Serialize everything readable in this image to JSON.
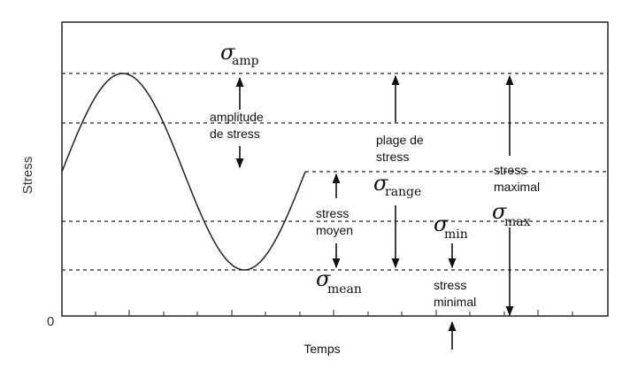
{
  "axes": {
    "y_label": "Stress",
    "x_label": "Temps",
    "origin_label": "0"
  },
  "annotations": {
    "amplitude": [
      "amplitude",
      "de stress"
    ],
    "mean": [
      "stress",
      "moyen"
    ],
    "range": [
      "plage de",
      "stress"
    ],
    "minimal": [
      "stress",
      "minimal"
    ],
    "maximal": [
      "stress",
      "maximal"
    ]
  },
  "symbols": {
    "sigma": "σ",
    "amp_sub": "amp",
    "range_sub": "range",
    "mean_sub": "mean",
    "min_sub": "min",
    "max_sub": "max"
  },
  "colors": {
    "line": "#222222",
    "text": "#111111"
  }
}
